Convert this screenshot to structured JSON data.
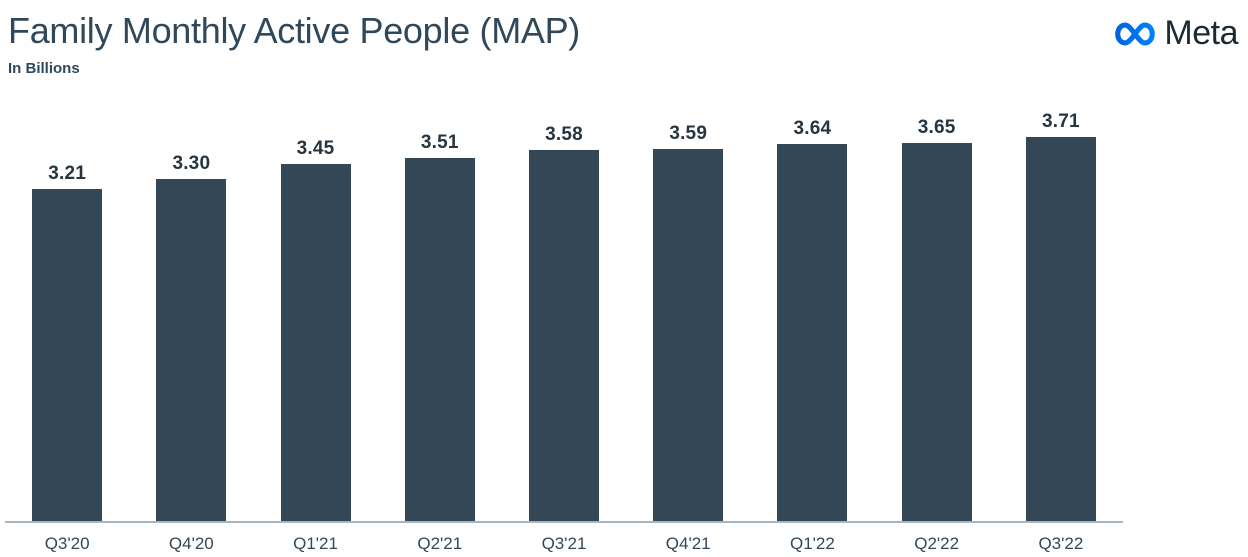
{
  "header": {
    "title": "Family Monthly Active People (MAP)",
    "subtitle": "In Billions"
  },
  "brand": {
    "wordmark": "Meta",
    "logo_icon": "meta-infinity-icon",
    "logo_blue_start": "#0064E0",
    "logo_blue_end": "#0082FB",
    "wordmark_color": "#1C2B33"
  },
  "chart_data": {
    "type": "bar",
    "title": "Family Monthly Active People (MAP)",
    "subtitle": "In Billions",
    "categories": [
      "Q3'20",
      "Q4'20",
      "Q1'21",
      "Q2'21",
      "Q3'21",
      "Q4'21",
      "Q1'22",
      "Q2'22",
      "Q3'22"
    ],
    "values": [
      3.21,
      3.3,
      3.45,
      3.51,
      3.58,
      3.59,
      3.64,
      3.65,
      3.71
    ],
    "value_labels": [
      "3.21",
      "3.30",
      "3.45",
      "3.51",
      "3.58",
      "3.59",
      "3.64",
      "3.65",
      "3.71"
    ],
    "xlabel": "",
    "ylabel": "",
    "ylim": [
      0,
      4
    ],
    "grid": false,
    "legend_position": "none",
    "bar_color": "#334756",
    "value_label_color": "#26353F",
    "category_label_color": "#33475A",
    "axis_line_color": "#A6B7C4"
  }
}
